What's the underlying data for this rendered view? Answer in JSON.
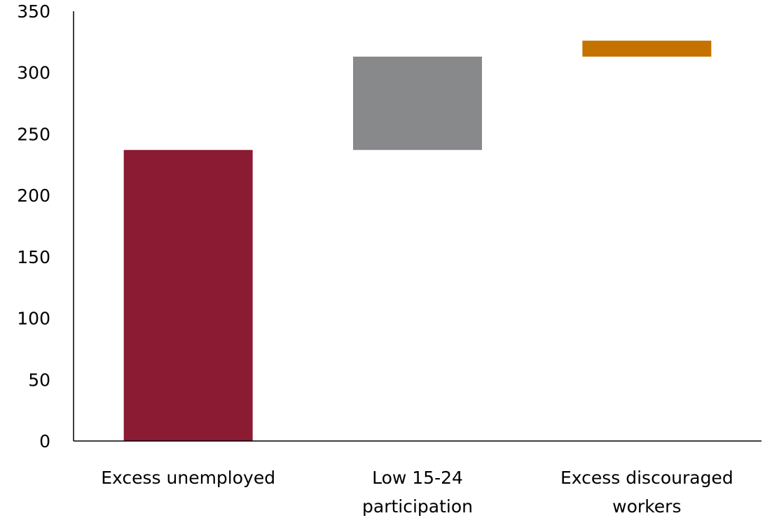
{
  "chart_data": {
    "type": "bar",
    "subtype": "waterfall",
    "title": "",
    "xlabel": "",
    "ylabel": "",
    "ylim": [
      0,
      350
    ],
    "yticks": [
      0,
      50,
      100,
      150,
      200,
      250,
      300,
      350
    ],
    "grid": false,
    "legend": "none",
    "categories": [
      [
        "Excess unemployed"
      ],
      [
        "Low 15-24",
        "participation"
      ],
      [
        "Excess discouraged",
        "workers"
      ]
    ],
    "bars": [
      {
        "base": 0,
        "value": 237,
        "top": 237,
        "color": "#8B1A33"
      },
      {
        "base": 237,
        "value": 76,
        "top": 313,
        "color": "#88898B"
      },
      {
        "base": 313,
        "value": 13,
        "top": 326,
        "color": "#C47300"
      }
    ]
  }
}
